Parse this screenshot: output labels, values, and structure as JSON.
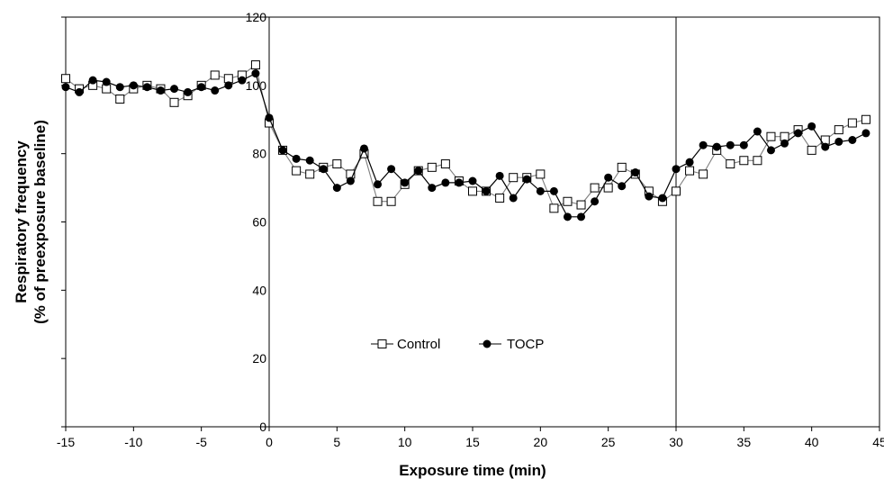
{
  "chart_data": {
    "type": "line",
    "title": "",
    "xlabel": "Exposure time (min)",
    "ylabel_lines": [
      "Respiratory frequency",
      "(% of preexposure baseline)"
    ],
    "xlim": [
      -15,
      45
    ],
    "ylim": [
      0,
      120
    ],
    "xticks": [
      -15,
      -10,
      -5,
      0,
      5,
      10,
      15,
      20,
      25,
      30,
      35,
      40,
      45
    ],
    "yticks": [
      0,
      20,
      40,
      60,
      80,
      100,
      120
    ],
    "vlines": [
      0,
      30
    ],
    "grid": false,
    "legend_position": "lower-center",
    "x": [
      -15,
      -14,
      -13,
      -12,
      -11,
      -10,
      -9,
      -8,
      -7,
      -6,
      -5,
      -4,
      -3,
      -2,
      -1,
      0,
      1,
      2,
      3,
      4,
      5,
      6,
      7,
      8,
      9,
      10,
      11,
      12,
      13,
      14,
      15,
      16,
      17,
      18,
      19,
      20,
      21,
      22,
      23,
      24,
      25,
      26,
      27,
      28,
      29,
      30,
      31,
      32,
      33,
      34,
      35,
      36,
      37,
      38,
      39,
      40,
      41,
      42,
      43,
      44
    ],
    "series": [
      {
        "name": "Control",
        "marker": "open-square",
        "color": "#000000",
        "line_color": "#7f7f7f",
        "values": [
          102,
          99,
          100,
          99,
          96,
          99,
          100,
          99,
          95,
          97,
          100,
          103,
          102,
          103,
          106,
          89,
          81,
          75,
          74,
          76,
          77,
          74,
          80,
          66,
          66,
          71,
          75,
          76,
          77,
          72,
          69,
          69,
          67,
          73,
          73,
          74,
          64,
          66,
          65,
          70,
          70,
          76,
          74,
          69,
          66,
          69,
          75,
          74,
          81,
          77,
          78,
          78,
          85,
          85,
          87,
          81,
          84,
          87,
          89,
          90
        ]
      },
      {
        "name": "TOCP",
        "marker": "filled-circle",
        "color": "#000000",
        "line_color": "#000000",
        "values": [
          99.5,
          98,
          101.5,
          101,
          99.5,
          100,
          99.5,
          98.5,
          99,
          98,
          99.5,
          98.5,
          100,
          101.5,
          103.5,
          90.5,
          81,
          78.5,
          78,
          75.5,
          70,
          72,
          81.5,
          71,
          75.5,
          71.5,
          75,
          70,
          71.5,
          71.5,
          72,
          69,
          73.5,
          67,
          72.5,
          69,
          69,
          61.5,
          61.5,
          66,
          73,
          70.5,
          74.5,
          67.5,
          67,
          75.5,
          77.5,
          82.5,
          82,
          82.5,
          82.5,
          86.5,
          81,
          83,
          86,
          88,
          82,
          83.5,
          84,
          86
        ]
      }
    ]
  }
}
